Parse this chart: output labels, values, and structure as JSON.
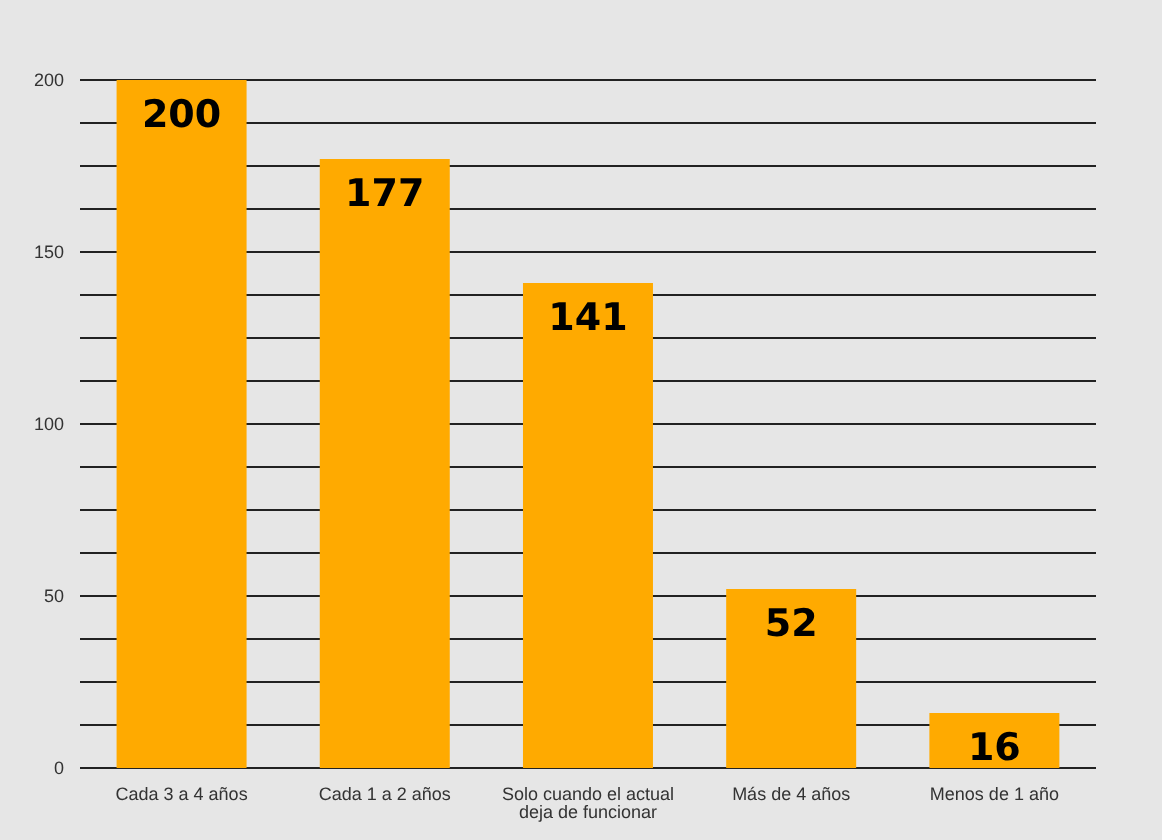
{
  "chart_data": {
    "type": "bar",
    "categories": [
      "Cada 3 a 4 años",
      "Cada 1 a 2 años",
      "Solo cuando el actual deja de funcionar",
      "Más de 4 años",
      "Menos de 1 año"
    ],
    "values": [
      200,
      177,
      141,
      52,
      16
    ],
    "color": "#ffaa00",
    "data_labels": true,
    "grid": "y",
    "ylim": [
      0,
      200
    ],
    "yticks": [
      0,
      {
        "value": 12.5,
        "label": null
      },
      {
        "value": 25,
        "label": null
      },
      {
        "value": 37.5,
        "label": null
      },
      50,
      {
        "value": 62.5,
        "label": null
      },
      {
        "value": 75,
        "label": null
      },
      {
        "value": 87.5,
        "label": null
      },
      100,
      {
        "value": 112.5,
        "label": null
      },
      {
        "value": 125,
        "label": null
      },
      {
        "value": 137.5,
        "label": null
      },
      150,
      {
        "value": 162.5,
        "label": null
      },
      {
        "value": 175,
        "label": null
      },
      {
        "value": 187.5,
        "label": null
      },
      200
    ]
  }
}
